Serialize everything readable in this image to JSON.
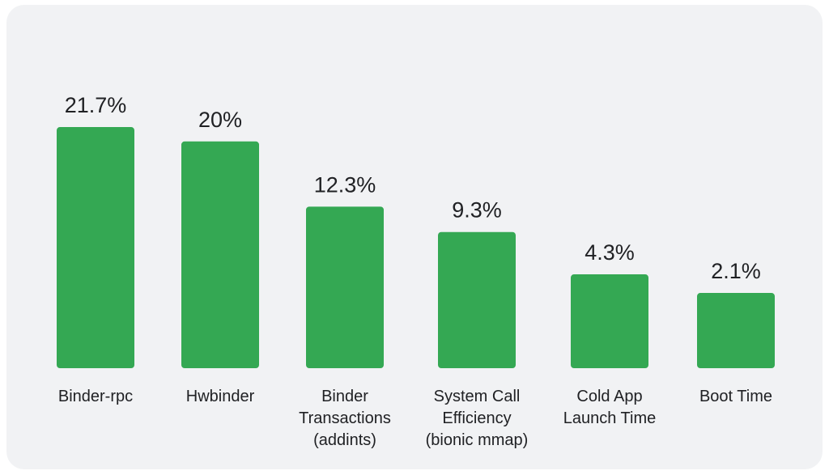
{
  "chart_data": {
    "type": "bar",
    "categories": [
      [
        "Binder-rpc"
      ],
      [
        "Hwbinder"
      ],
      [
        "Binder",
        "Transactions",
        "(addints)"
      ],
      [
        "System Call",
        "Efficiency",
        "(bionic mmap)"
      ],
      [
        "Cold App",
        "Launch Time"
      ],
      [
        "Boot Time"
      ]
    ],
    "values": [
      21.7,
      20,
      12.3,
      9.3,
      4.3,
      2.1
    ],
    "value_labels": [
      "21.7%",
      "20%",
      "12.3%",
      "9.3%",
      "4.3%",
      "2.1%"
    ],
    "title": "",
    "xlabel": "",
    "ylabel": "",
    "grid": false,
    "colors": {
      "bar": "#34a853",
      "background": "#f1f2f4",
      "text": "#202124"
    }
  }
}
